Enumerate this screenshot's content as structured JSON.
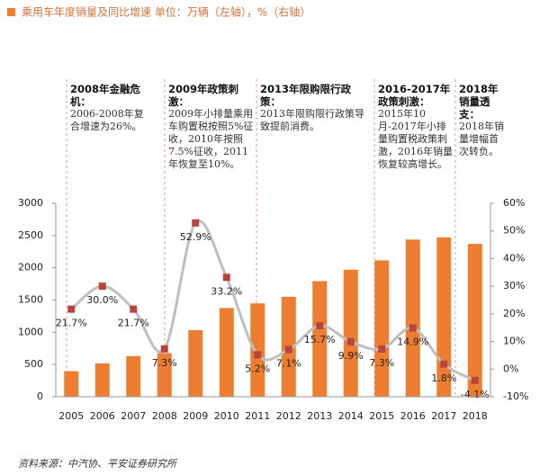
{
  "chart_data": {
    "type": "bar-line",
    "title": "乘用车年度销量及同比增速 单位：万辆（左轴），%（右轴）",
    "source": "资料来源：中汽协、平安证券研究所",
    "categories": [
      "2005",
      "2006",
      "2007",
      "2008",
      "2009",
      "2010",
      "2011",
      "2012",
      "2013",
      "2014",
      "2015",
      "2016",
      "2017",
      "2018"
    ],
    "series": [
      {
        "type": "bar",
        "color": "#ed7d31",
        "values": [
          397,
          518,
          630,
          676,
          1033,
          1376,
          1448,
          1550,
          1793,
          1970,
          2115,
          2438,
          2472,
          2371
        ]
      },
      {
        "type": "line",
        "axis": "y2",
        "color": "#bfbfbf",
        "marker_color": "#b5453e",
        "values": [
          21.7,
          30.0,
          21.7,
          7.3,
          52.9,
          33.2,
          5.2,
          7.1,
          15.7,
          9.9,
          7.3,
          14.9,
          1.8,
          -4.1
        ],
        "value_labels": [
          "21.7%",
          "30.0%",
          "21.7%",
          "7.3%",
          "52.9%",
          "33.2%",
          "5.2%",
          "7.1%",
          "15.7%",
          "9.9%",
          "7.3%",
          "14.9%",
          "1.8%",
          "-4.1%"
        ]
      }
    ],
    "ylim": [
      0,
      3000
    ],
    "yticks": [
      0,
      500,
      1000,
      1500,
      2000,
      2500,
      3000
    ],
    "y2lim": [
      -10,
      60
    ],
    "y2ticks": [
      {
        "value": -10,
        "label": "-10%"
      },
      {
        "value": 0,
        "label": "0%"
      },
      {
        "value": 10,
        "label": "10%"
      },
      {
        "value": 20,
        "label": "20%"
      },
      {
        "value": 30,
        "label": "30%"
      },
      {
        "value": 40,
        "label": "40%"
      },
      {
        "value": 50,
        "label": "50%"
      },
      {
        "value": 60,
        "label": "60%"
      }
    ],
    "annotations": [
      {
        "heading": "2008年金融危机：",
        "text": "2006-2008年复合增速为26%。"
      },
      {
        "heading": "2009年政策刺激：",
        "text": "2009年小排量乘用车购置税按照5%征收，2010年按照7.5%征收，2011年恢复至10%。"
      },
      {
        "heading": "2013年限购限行政策：",
        "text": "2013年限购限行政策导致提前消费。"
      },
      {
        "heading": "2016-2017年政策刺激：",
        "text": "2015年10月-2017年小排量购置税政策刺激，2016年销量恢复较高增长。"
      },
      {
        "heading": "2018年销量透支：",
        "text": "2018年销量增幅首次转负。"
      }
    ]
  }
}
